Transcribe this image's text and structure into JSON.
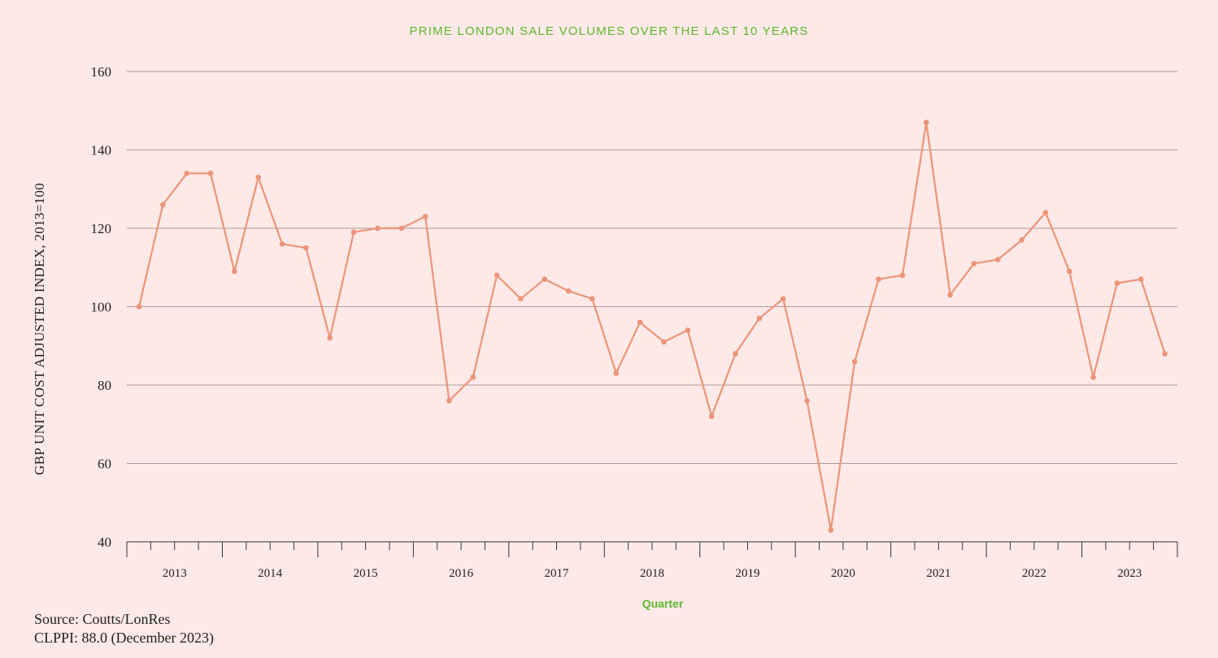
{
  "colors": {
    "background": "#fde9e7",
    "title": "#5cb82e",
    "line": "#ec9479",
    "grid": "#8a8080",
    "axis": "#333333"
  },
  "footnotes": {
    "source": "Source: Coutts/LonRes",
    "clppi": "CLPPI: 88.0 (December 2023)"
  },
  "chart_data": {
    "type": "line",
    "title": "PRIME LONDON SALE VOLUMES OVER THE LAST 10 YEARS",
    "xlabel": "Quarter",
    "ylabel": "GBP UNIT COST ADJUSTED INDEX, 2013=100",
    "ylim": [
      40,
      160
    ],
    "yticks": [
      40,
      60,
      80,
      100,
      120,
      140,
      160
    ],
    "grid": true,
    "year_labels": [
      "2013",
      "2014",
      "2015",
      "2016",
      "2017",
      "2018",
      "2019",
      "2020",
      "2021",
      "2022",
      "2023"
    ],
    "series": [
      {
        "values": [
          100,
          126,
          134,
          134,
          109,
          133,
          116,
          115,
          92,
          119,
          120,
          120,
          123,
          76,
          82,
          108,
          102,
          107,
          104,
          102,
          83,
          96,
          91,
          94,
          72,
          88,
          97,
          102,
          76,
          43,
          86,
          107,
          108,
          147,
          103,
          111,
          112,
          117,
          124,
          109,
          82,
          106,
          107,
          88
        ]
      }
    ]
  }
}
